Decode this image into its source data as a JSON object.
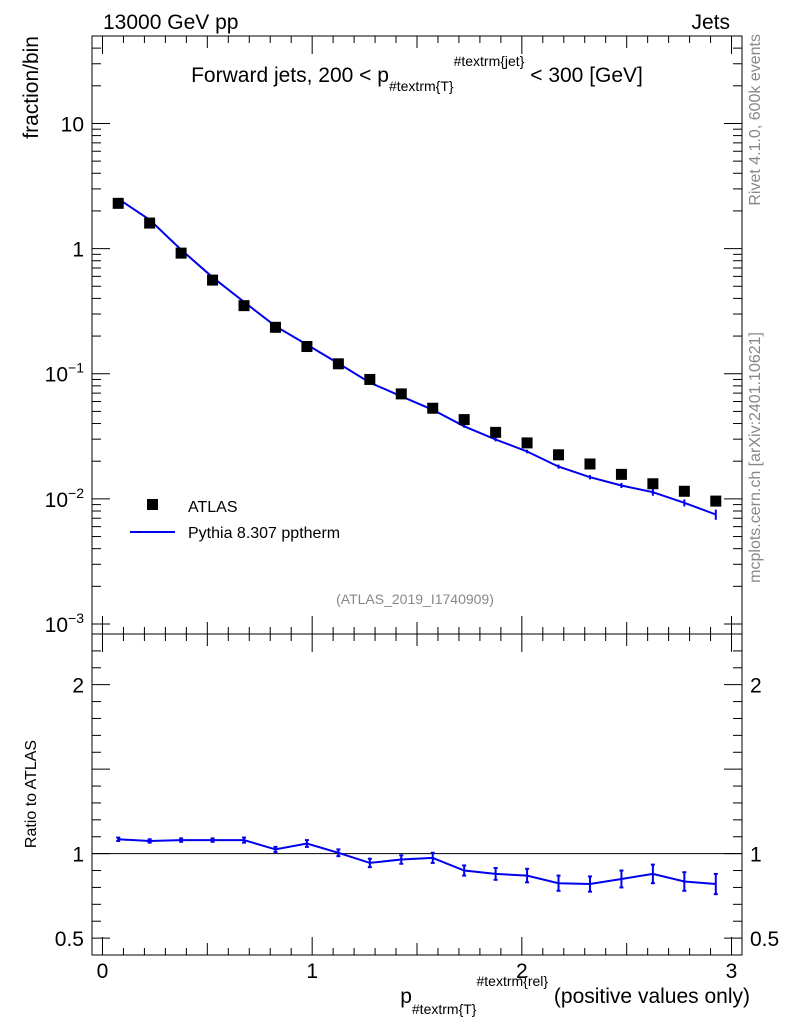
{
  "header": {
    "left": "13000 GeV pp",
    "right": "Jets"
  },
  "side_labels": {
    "top": "Rivet 4.1.0,  600k events",
    "bottom": "mcplots.cern.ch [arXiv:2401.10621]"
  },
  "chart_data": [
    {
      "type": "scatter",
      "title_parts": {
        "pre": "Forward jets, 200 < p",
        "sub": "#textrm{T}",
        "sup": "#textrm{jet}",
        "post": " < 300 [GeV]"
      },
      "ylabel": "fraction/bin",
      "yscale": "log",
      "ylim": [
        0.001,
        50
      ],
      "xlim": [
        -0.05,
        3.05
      ],
      "ytick_labels": [
        {
          "value": 10,
          "base": "10",
          "exp": ""
        },
        {
          "value": 1,
          "base": "1",
          "exp": ""
        },
        {
          "value": 0.1,
          "base": "10",
          "exp": "−1"
        },
        {
          "value": 0.01,
          "base": "10",
          "exp": "−2"
        },
        {
          "value": 0.001,
          "base": "10",
          "exp": "−3"
        }
      ],
      "watermark": "(ATLAS_2019_I1740909)",
      "legend": {
        "position": "bottom-left",
        "entries": [
          "ATLAS",
          "Pythia 8.307 pptherm"
        ]
      },
      "x": [
        0.075,
        0.225,
        0.375,
        0.525,
        0.675,
        0.825,
        0.975,
        1.125,
        1.275,
        1.425,
        1.575,
        1.725,
        1.875,
        2.025,
        2.175,
        2.325,
        2.475,
        2.625,
        2.775,
        2.925
      ],
      "series": [
        {
          "name": "ATLAS",
          "style": "markers",
          "color": "#000000",
          "values": [
            2.3,
            1.6,
            0.92,
            0.56,
            0.35,
            0.235,
            0.165,
            0.12,
            0.09,
            0.069,
            0.053,
            0.043,
            0.034,
            0.028,
            0.0225,
            0.019,
            0.0157,
            0.0132,
            0.0115,
            0.0096
          ]
        },
        {
          "name": "Pythia 8.307 pptherm",
          "style": "line",
          "color": "#0000ee",
          "values": [
            2.5,
            1.7,
            0.98,
            0.59,
            0.375,
            0.24,
            0.171,
            0.121,
            0.085,
            0.066,
            0.0515,
            0.038,
            0.0298,
            0.0239,
            0.0181,
            0.0149,
            0.0128,
            0.0113,
            0.0093,
            0.0075
          ],
          "errors": [
            0,
            0,
            0,
            0,
            0,
            0,
            0,
            0,
            0,
            0,
            0.001,
            0.001,
            0.001,
            0.0008,
            0.0007,
            0.0006,
            0.0006,
            0.0007,
            0.0006,
            0.0007
          ]
        }
      ]
    },
    {
      "type": "line",
      "ylabel": "Ratio to ATLAS",
      "xlabel_parts": {
        "pre": "p",
        "sub": "#textrm{T}",
        "sup": "#textrm{rel}",
        "post": " (positive values only)"
      },
      "ylim": [
        0.4,
        2.3
      ],
      "xlim": [
        -0.05,
        3.05
      ],
      "reference_line": 1,
      "ytick_labels": [
        {
          "value": 2,
          "label": "2"
        },
        {
          "value": 1,
          "label": "1"
        },
        {
          "value": 0.5,
          "label": "0.5"
        }
      ],
      "xtick_labels": [
        {
          "value": 0,
          "label": "0"
        },
        {
          "value": 1,
          "label": "1"
        },
        {
          "value": 2,
          "label": "2"
        },
        {
          "value": 3,
          "label": "3"
        }
      ],
      "x": [
        0.075,
        0.225,
        0.375,
        0.525,
        0.675,
        0.825,
        0.975,
        1.125,
        1.275,
        1.425,
        1.575,
        1.725,
        1.875,
        2.025,
        2.175,
        2.325,
        2.475,
        2.625,
        2.775,
        2.925
      ],
      "series": [
        {
          "name": "Pythia 8.307 pptherm",
          "color": "#0000ee",
          "values": [
            1.085,
            1.075,
            1.08,
            1.08,
            1.08,
            1.025,
            1.06,
            1.005,
            0.945,
            0.965,
            0.975,
            0.9,
            0.88,
            0.87,
            0.825,
            0.82,
            0.85,
            0.88,
            0.835,
            0.82
          ],
          "errors": [
            0.01,
            0.01,
            0.01,
            0.01,
            0.015,
            0.015,
            0.02,
            0.02,
            0.025,
            0.025,
            0.03,
            0.03,
            0.035,
            0.04,
            0.045,
            0.045,
            0.05,
            0.055,
            0.055,
            0.06
          ]
        }
      ]
    }
  ]
}
